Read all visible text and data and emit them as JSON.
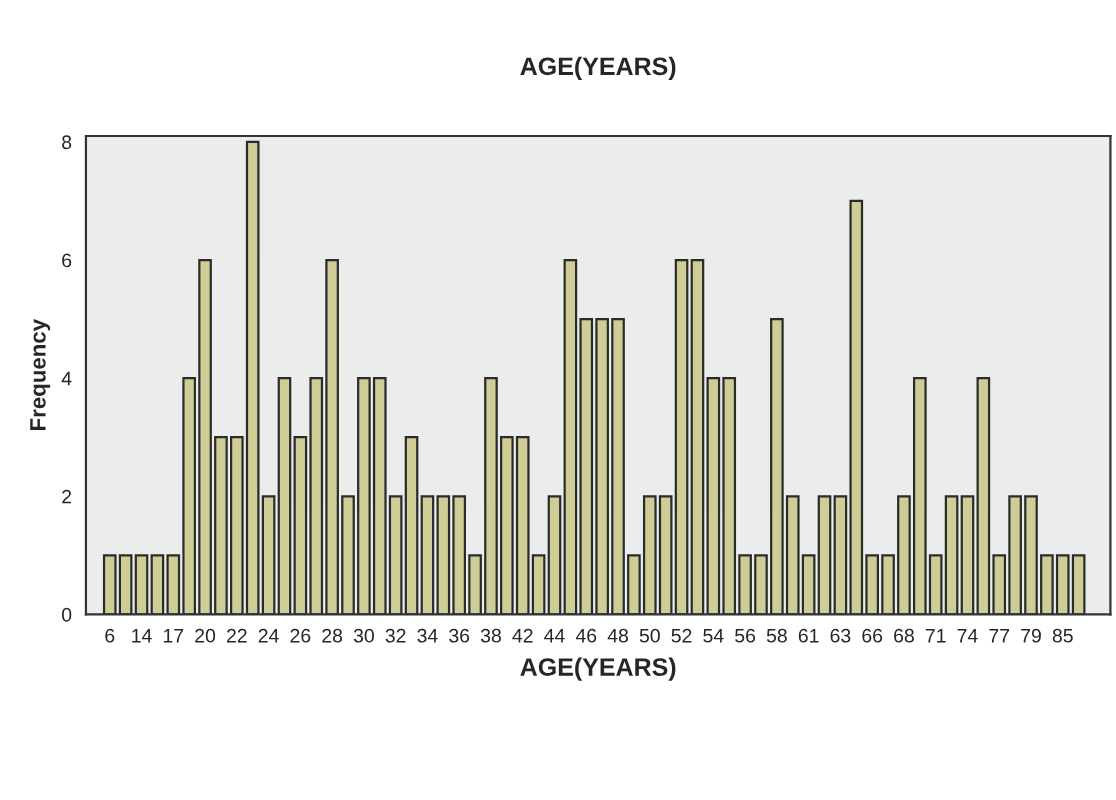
{
  "chart_data": {
    "type": "bar",
    "title": "AGE(YEARS)",
    "xlabel": "AGE(YEARS)",
    "ylabel": "Frequency",
    "categories": [
      "6",
      null,
      "14",
      null,
      "17",
      null,
      "20",
      null,
      "22",
      null,
      "24",
      null,
      "26",
      null,
      "28",
      null,
      "30",
      null,
      "32",
      null,
      "34",
      null,
      "36",
      null,
      "38",
      null,
      "42",
      null,
      "44",
      null,
      "46",
      null,
      "48",
      null,
      "50",
      null,
      "52",
      null,
      "54",
      null,
      "56",
      null,
      "58",
      null,
      "61",
      null,
      "63",
      null,
      "66",
      null,
      "68",
      null,
      "71",
      null,
      "74",
      null,
      "77",
      null,
      "79",
      null,
      "85",
      null
    ],
    "values": [
      1,
      1,
      1,
      1,
      1,
      4,
      6,
      3,
      3,
      8,
      2,
      4,
      3,
      4,
      6,
      2,
      4,
      4,
      2,
      3,
      2,
      2,
      2,
      1,
      4,
      3,
      3,
      1,
      2,
      6,
      5,
      5,
      5,
      1,
      2,
      2,
      6,
      6,
      4,
      4,
      1,
      1,
      5,
      2,
      1,
      2,
      2,
      7,
      1,
      1,
      2,
      4,
      1,
      2,
      2,
      4,
      1,
      2,
      2,
      1,
      1,
      1
    ],
    "color": "#cfcc96",
    "ylim": [
      0,
      8.1
    ],
    "yticks": [
      0,
      2,
      4,
      6,
      8
    ],
    "grid": false,
    "legend": false
  }
}
